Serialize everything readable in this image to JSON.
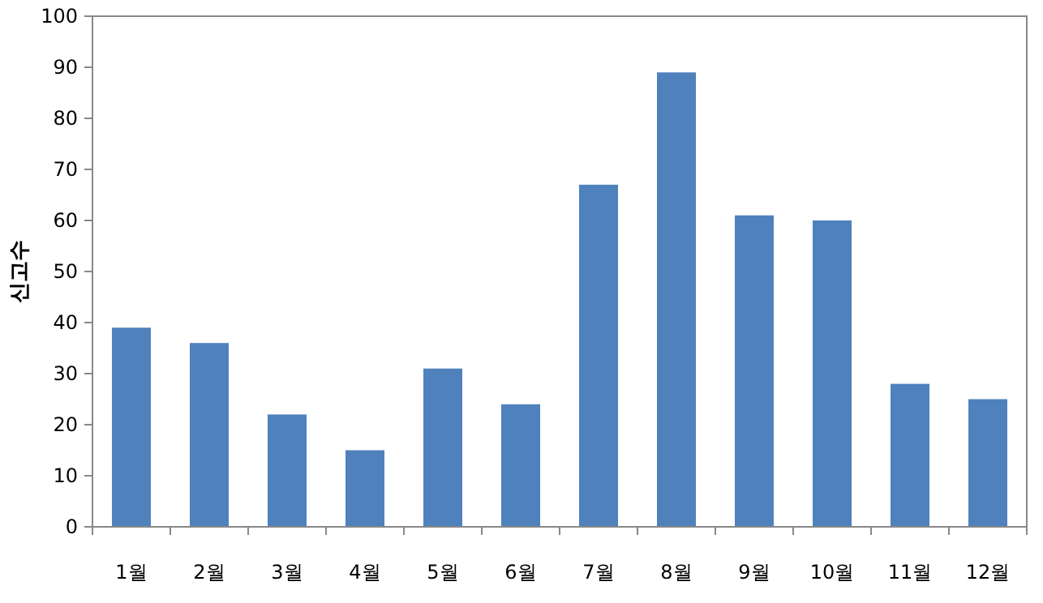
{
  "chart_data": {
    "type": "bar",
    "ylabel": "신고수",
    "categories": [
      "1월",
      "2월",
      "3월",
      "4월",
      "5월",
      "6월",
      "7월",
      "8월",
      "9월",
      "10월",
      "11월",
      "12월"
    ],
    "values": [
      39,
      36,
      22,
      15,
      31,
      24,
      67,
      89,
      61,
      60,
      28,
      25
    ],
    "color": "#4f81bd",
    "ylim": [
      0,
      100
    ],
    "yticks": [
      0,
      10,
      20,
      30,
      40,
      50,
      60,
      70,
      80,
      90,
      100
    ],
    "grid": false
  }
}
